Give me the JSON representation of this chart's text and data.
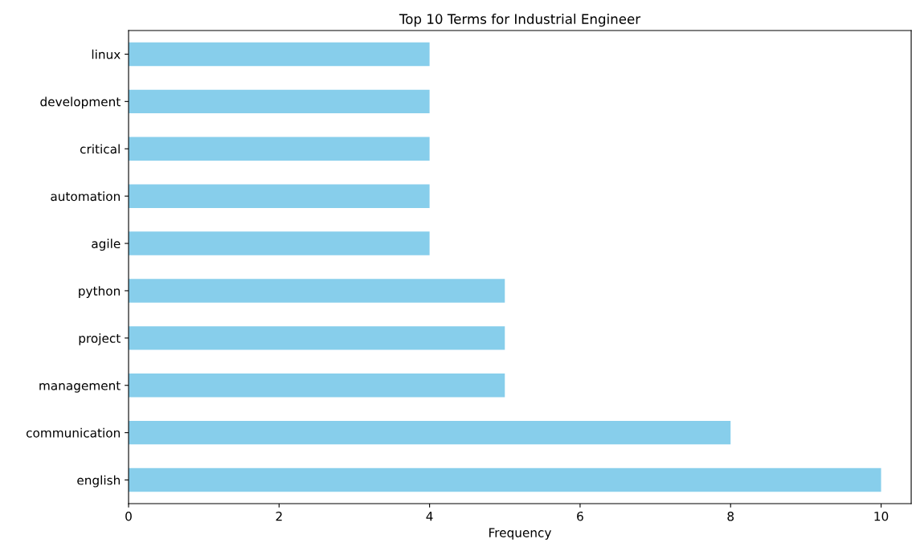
{
  "chart_data": {
    "type": "bar",
    "orientation": "horizontal",
    "title": "Top 10 Terms for Industrial Engineer",
    "xlabel": "Frequency",
    "categories": [
      "linux",
      "development",
      "critical",
      "automation",
      "agile",
      "python",
      "project",
      "management",
      "communication",
      "english"
    ],
    "values": [
      4,
      4,
      4,
      4,
      4,
      5,
      5,
      5,
      8,
      10
    ],
    "color": "#87ceeb",
    "xlim": [
      0,
      10.4
    ],
    "xticks": [
      0,
      2,
      4,
      6,
      8,
      10
    ],
    "grid": false,
    "legend": false
  }
}
